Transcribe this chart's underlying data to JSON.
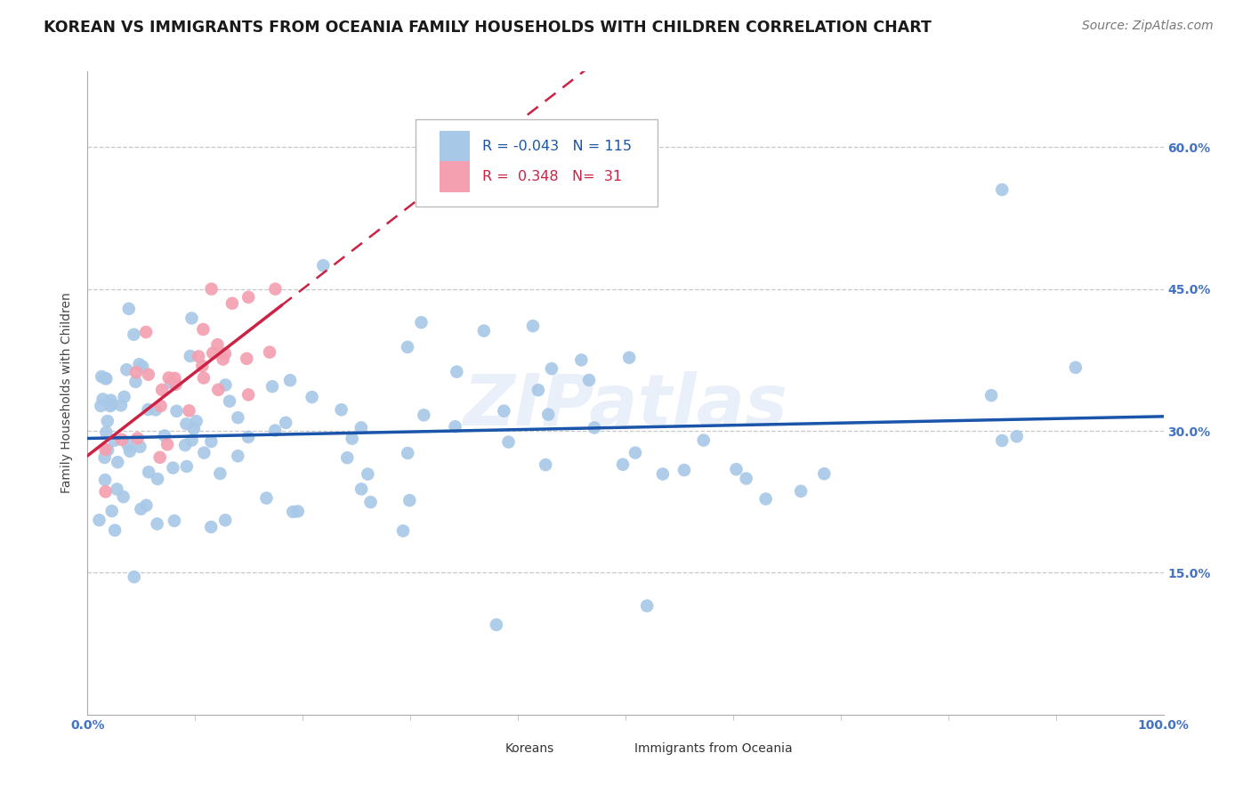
{
  "title": "KOREAN VS IMMIGRANTS FROM OCEANIA FAMILY HOUSEHOLDS WITH CHILDREN CORRELATION CHART",
  "source": "Source: ZipAtlas.com",
  "ylabel": "Family Households with Children",
  "xlim": [
    0.0,
    1.0
  ],
  "ylim": [
    0.0,
    0.68
  ],
  "yticks": [
    0.0,
    0.15,
    0.3,
    0.45,
    0.6
  ],
  "hlines": [
    0.15,
    0.3,
    0.45,
    0.6
  ],
  "korean_R": -0.043,
  "korean_N": 115,
  "oceania_R": 0.348,
  "oceania_N": 31,
  "korean_color": "#a8c8e8",
  "oceania_color": "#f4a0b0",
  "trend_korean_color": "#1a55aa",
  "trend_oceania_color": "#cc2244",
  "watermark": "ZIPatlas",
  "background_color": "#ffffff",
  "grid_color": "#c8c8c8",
  "axis_color": "#4472c4",
  "title_color": "#1a1a1a",
  "title_fontsize": 12.5,
  "ylabel_fontsize": 10,
  "tick_fontsize": 10,
  "legend_korean_color": "#cc2244",
  "legend_R1_color": "#cc2244",
  "legend_R2_color": "#cc2244",
  "legend_N1_color": "#4472c4",
  "legend_N2_color": "#4472c4"
}
